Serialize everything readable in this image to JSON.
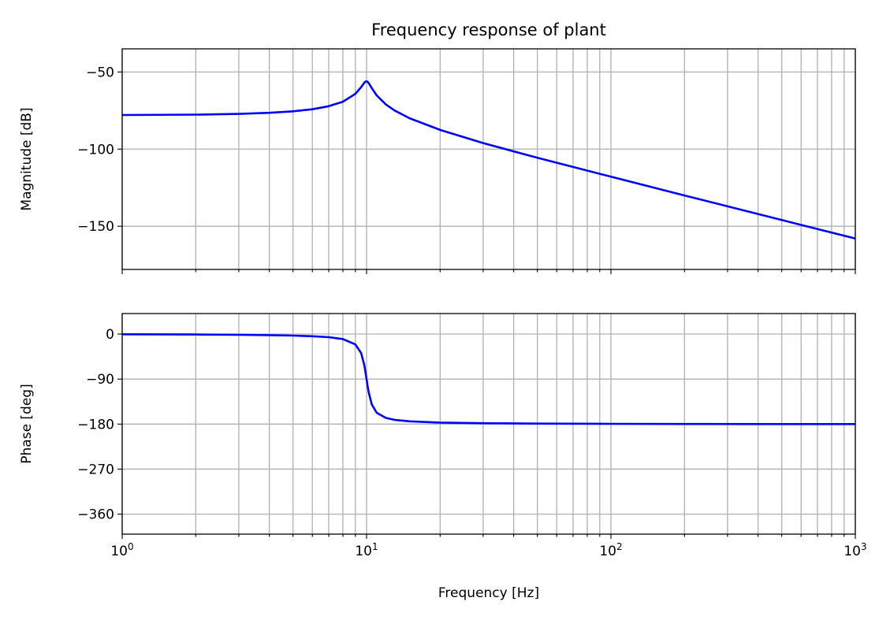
{
  "chart_data": [
    {
      "type": "line",
      "title": "Frequency response of plant",
      "xlabel": "",
      "ylabel": "Magnitude [dB]",
      "xscale": "log",
      "xlim": [
        1,
        1000
      ],
      "ylim": [
        -178,
        -35
      ],
      "grid": "both",
      "yticks": [
        -50,
        -100,
        -150
      ],
      "ytick_labels": [
        "−50",
        "−100",
        "−150"
      ],
      "color": "#0000ff",
      "x": [
        1,
        2,
        3,
        4,
        5,
        6,
        7,
        8,
        9,
        9.5,
        9.8,
        9.9,
        10,
        10.1,
        10.2,
        10.5,
        11,
        12,
        13,
        15,
        20,
        30,
        50,
        100,
        200,
        500,
        1000
      ],
      "y": [
        -77.91,
        -77.65,
        -77.18,
        -76.49,
        -75.51,
        -74.15,
        -72.2,
        -69.26,
        -64.16,
        -59.84,
        -56.87,
        -56.24,
        -56.06,
        -56.41,
        -57.19,
        -60.45,
        -65.15,
        -71.07,
        -74.87,
        -79.98,
        -87.56,
        -96.07,
        -105.61,
        -117.91,
        -130.02,
        -145.96,
        -158.0
      ]
    },
    {
      "type": "line",
      "title": "",
      "xlabel": "Frequency [Hz]",
      "ylabel": "Phase [deg]",
      "xscale": "log",
      "xlim": [
        1,
        1000
      ],
      "ylim": [
        -400,
        41
      ],
      "grid": "both",
      "yticks": [
        0,
        -90,
        -180,
        -270,
        -360
      ],
      "ytick_labels": [
        "0",
        "−90",
        "−180",
        "−270",
        "−360"
      ],
      "xticks": [
        1,
        10,
        100,
        1000
      ],
      "xtick_labels": [
        {
          "base": "10",
          "exp": "0"
        },
        {
          "base": "10",
          "exp": "1"
        },
        {
          "base": "10",
          "exp": "2"
        },
        {
          "base": "10",
          "exp": "3"
        }
      ],
      "color": "#0000ff",
      "x": [
        1,
        2,
        3,
        4,
        5,
        6,
        7,
        8,
        9,
        9.5,
        9.8,
        9.9,
        10,
        10.1,
        10.2,
        10.5,
        11,
        12,
        13,
        15,
        20,
        30,
        50,
        100,
        200,
        500,
        1000
      ],
      "y": [
        -0.46,
        -0.95,
        -1.51,
        -2.18,
        -3.05,
        -4.29,
        -6.27,
        -10.08,
        -20.75,
        -37.94,
        -63.2,
        -75.9,
        -90,
        -103.97,
        -116.34,
        -140.67,
        -157.27,
        -167.69,
        -171.43,
        -174.52,
        -176.95,
        -178.28,
        -179.05,
        -179.54,
        -179.77,
        -179.91,
        -179.95
      ]
    }
  ]
}
